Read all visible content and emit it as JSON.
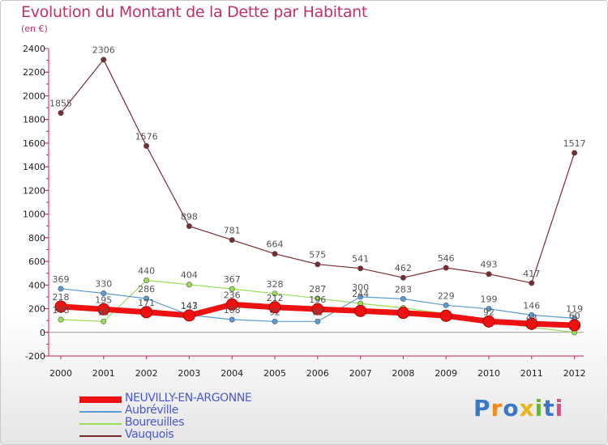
{
  "header": {
    "title": "Evolution du Montant de la Dette par Habitant",
    "subtitle": "(en €)"
  },
  "logo": {
    "text": "Proxiti",
    "colors": [
      "#3a78c8",
      "#f08a1c",
      "#3a78c8",
      "#e6b51e",
      "#68b43c",
      "#3a78c8",
      "#e04a8a"
    ]
  },
  "chart_data": {
    "type": "line",
    "title": "Evolution du Montant de la Dette par Habitant",
    "subtitle": "(en €)",
    "x": [
      "2000",
      "2001",
      "2002",
      "2003",
      "2004",
      "2005",
      "2006",
      "2007",
      "2008",
      "2009",
      "2010",
      "2011",
      "2012"
    ],
    "ylim": [
      -200,
      2400
    ],
    "yticks": [
      -200,
      0,
      200,
      400,
      600,
      800,
      1000,
      1200,
      1400,
      1600,
      1800,
      2000,
      2200,
      2400
    ],
    "grid": false,
    "legend_position": "bottom-left",
    "series": [
      {
        "name": "NEUVILLY-EN-ARGONNE",
        "color": "#ee1111",
        "values": [
          218,
          195,
          171,
          143,
          236,
          212,
          196,
          181,
          165,
          140,
          92,
          73,
          60
        ],
        "labels": [
          "218",
          "195",
          "171",
          "143",
          "236",
          "212",
          "196",
          "",
          "",
          "",
          "92",
          "",
          "60"
        ]
      },
      {
        "name": "Aubréville",
        "color": "#5b9bd5",
        "values": [
          369,
          330,
          286,
          147,
          108,
          92,
          92,
          300,
          283,
          229,
          199,
          146,
          119
        ],
        "labels": [
          "369",
          "330",
          "286",
          "147",
          "108",
          "92",
          "92",
          "300",
          "283",
          "229",
          "199",
          "146",
          "119"
        ]
      },
      {
        "name": "Boureuilles",
        "color": "#99dd55",
        "values": [
          108,
          92,
          440,
          404,
          367,
          328,
          287,
          244,
          207,
          156,
          92,
          43,
          0
        ],
        "labels": [
          "108",
          "92",
          "440",
          "404",
          "367",
          "328",
          "287",
          "244",
          "",
          "",
          "",
          "43",
          ""
        ]
      },
      {
        "name": "Vauquois",
        "color": "#7a2a30",
        "values": [
          1855,
          2306,
          1576,
          898,
          781,
          664,
          575,
          541,
          462,
          546,
          493,
          417,
          1517
        ],
        "labels": [
          "1855",
          "2306",
          "1576",
          "898",
          "781",
          "664",
          "575",
          "541",
          "462",
          "546",
          "493",
          "417",
          "1517"
        ]
      }
    ]
  }
}
